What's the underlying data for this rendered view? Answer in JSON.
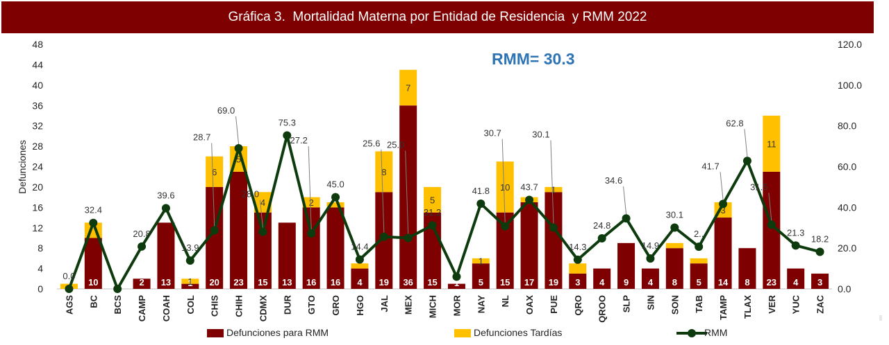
{
  "title": "Gráfica 3.  Mortalidad Materna por Entidad de Residencia  y RMM 2022",
  "annotation": "RMM= 30.3",
  "chart_data": {
    "type": "bar",
    "stacked": true,
    "categories": [
      "AGS",
      "BC",
      "BCS",
      "CAMP",
      "COAH",
      "COL",
      "CHIS",
      "CHIH",
      "CDMX",
      "DUR",
      "GTO",
      "GRO",
      "HGO",
      "JAL",
      "MEX",
      "MICH",
      "MOR",
      "NAY",
      "NL",
      "OAX",
      "PUE",
      "QRO",
      "QROO",
      "SLP",
      "SIN",
      "SON",
      "TAB",
      "TAMP",
      "TLAX",
      "VER",
      "YUC",
      "ZAC"
    ],
    "series": [
      {
        "name": "Defunciones para RMM",
        "axis": "left",
        "color": "#7f0000",
        "values": [
          0,
          10,
          0,
          2,
          13,
          1,
          20,
          23,
          15,
          13,
          16,
          16,
          4,
          19,
          36,
          15,
          1,
          5,
          15,
          17,
          19,
          3,
          4,
          9,
          4,
          8,
          5,
          14,
          8,
          23,
          4,
          3
        ],
        "labels": [
          "",
          "10",
          "",
          "2",
          "13",
          "1",
          "20",
          "23",
          "15",
          "13",
          "16",
          "16",
          "4",
          "19",
          "36",
          "15",
          "1",
          "5",
          "15",
          "17",
          "19",
          "3",
          "4",
          "9",
          "4",
          "8",
          "5",
          "14",
          "8",
          "23",
          "4",
          "3"
        ]
      },
      {
        "name": "Defunciones Tardías",
        "axis": "left",
        "color": "#ffc000",
        "values": [
          1,
          3,
          0,
          0,
          0,
          1,
          6,
          5,
          4,
          0,
          2,
          1,
          1,
          8,
          7,
          5,
          0,
          1,
          10,
          1,
          1,
          2,
          0,
          0,
          0,
          1,
          1,
          3,
          0,
          11,
          0,
          0
        ],
        "labels": [
          "",
          "",
          "",
          "",
          "",
          "1",
          "6",
          "5",
          "4",
          "",
          "2",
          "",
          "",
          "8",
          "7",
          "5",
          "",
          "1",
          "10",
          "",
          "1",
          "",
          "",
          "",
          "",
          "",
          "",
          "3",
          "",
          "11",
          "",
          ""
        ]
      },
      {
        "name": "RMM",
        "axis": "right",
        "type": "line",
        "color": "#0d3b0d",
        "values": [
          0.0,
          32.4,
          0.0,
          20.8,
          39.6,
          13.9,
          28.7,
          69.0,
          28.0,
          75.3,
          27.2,
          45.0,
          14.4,
          25.6,
          25.0,
          31.2,
          6.0,
          41.8,
          30.7,
          43.7,
          30.1,
          14.3,
          24.8,
          34.6,
          14.9,
          30.1,
          20.7,
          41.7,
          62.8,
          31.5,
          21.3,
          18.2
        ],
        "labels": [
          "0.0",
          "32.4",
          "",
          "20.8",
          "39.6",
          "13.9",
          "28.7",
          "69.0",
          "28.0",
          "75.3",
          "27.2",
          "45.0",
          "14.4",
          "25.6",
          "25.0",
          "31.2",
          "",
          "41.8",
          "30.7",
          "43.7",
          "30.1",
          "14.3",
          "24.8",
          "34.6",
          "14.9",
          "30.1",
          "2..",
          "41.7",
          "62.8",
          "31.5",
          "21.3",
          "18.2"
        ]
      }
    ],
    "ylabel": "Defunciones",
    "ylim": [
      0,
      48
    ],
    "yticks": [
      "0",
      "4",
      "8",
      "12",
      "16",
      "20",
      "24",
      "28",
      "32",
      "36",
      "40",
      "44",
      "48"
    ],
    "y2lim": [
      0,
      120
    ],
    "y2ticks": [
      "0.0",
      "20.0",
      "40.0",
      "60.0",
      "80.0",
      "100.0",
      "120.0"
    ],
    "grid": false,
    "legend": "bottom"
  }
}
